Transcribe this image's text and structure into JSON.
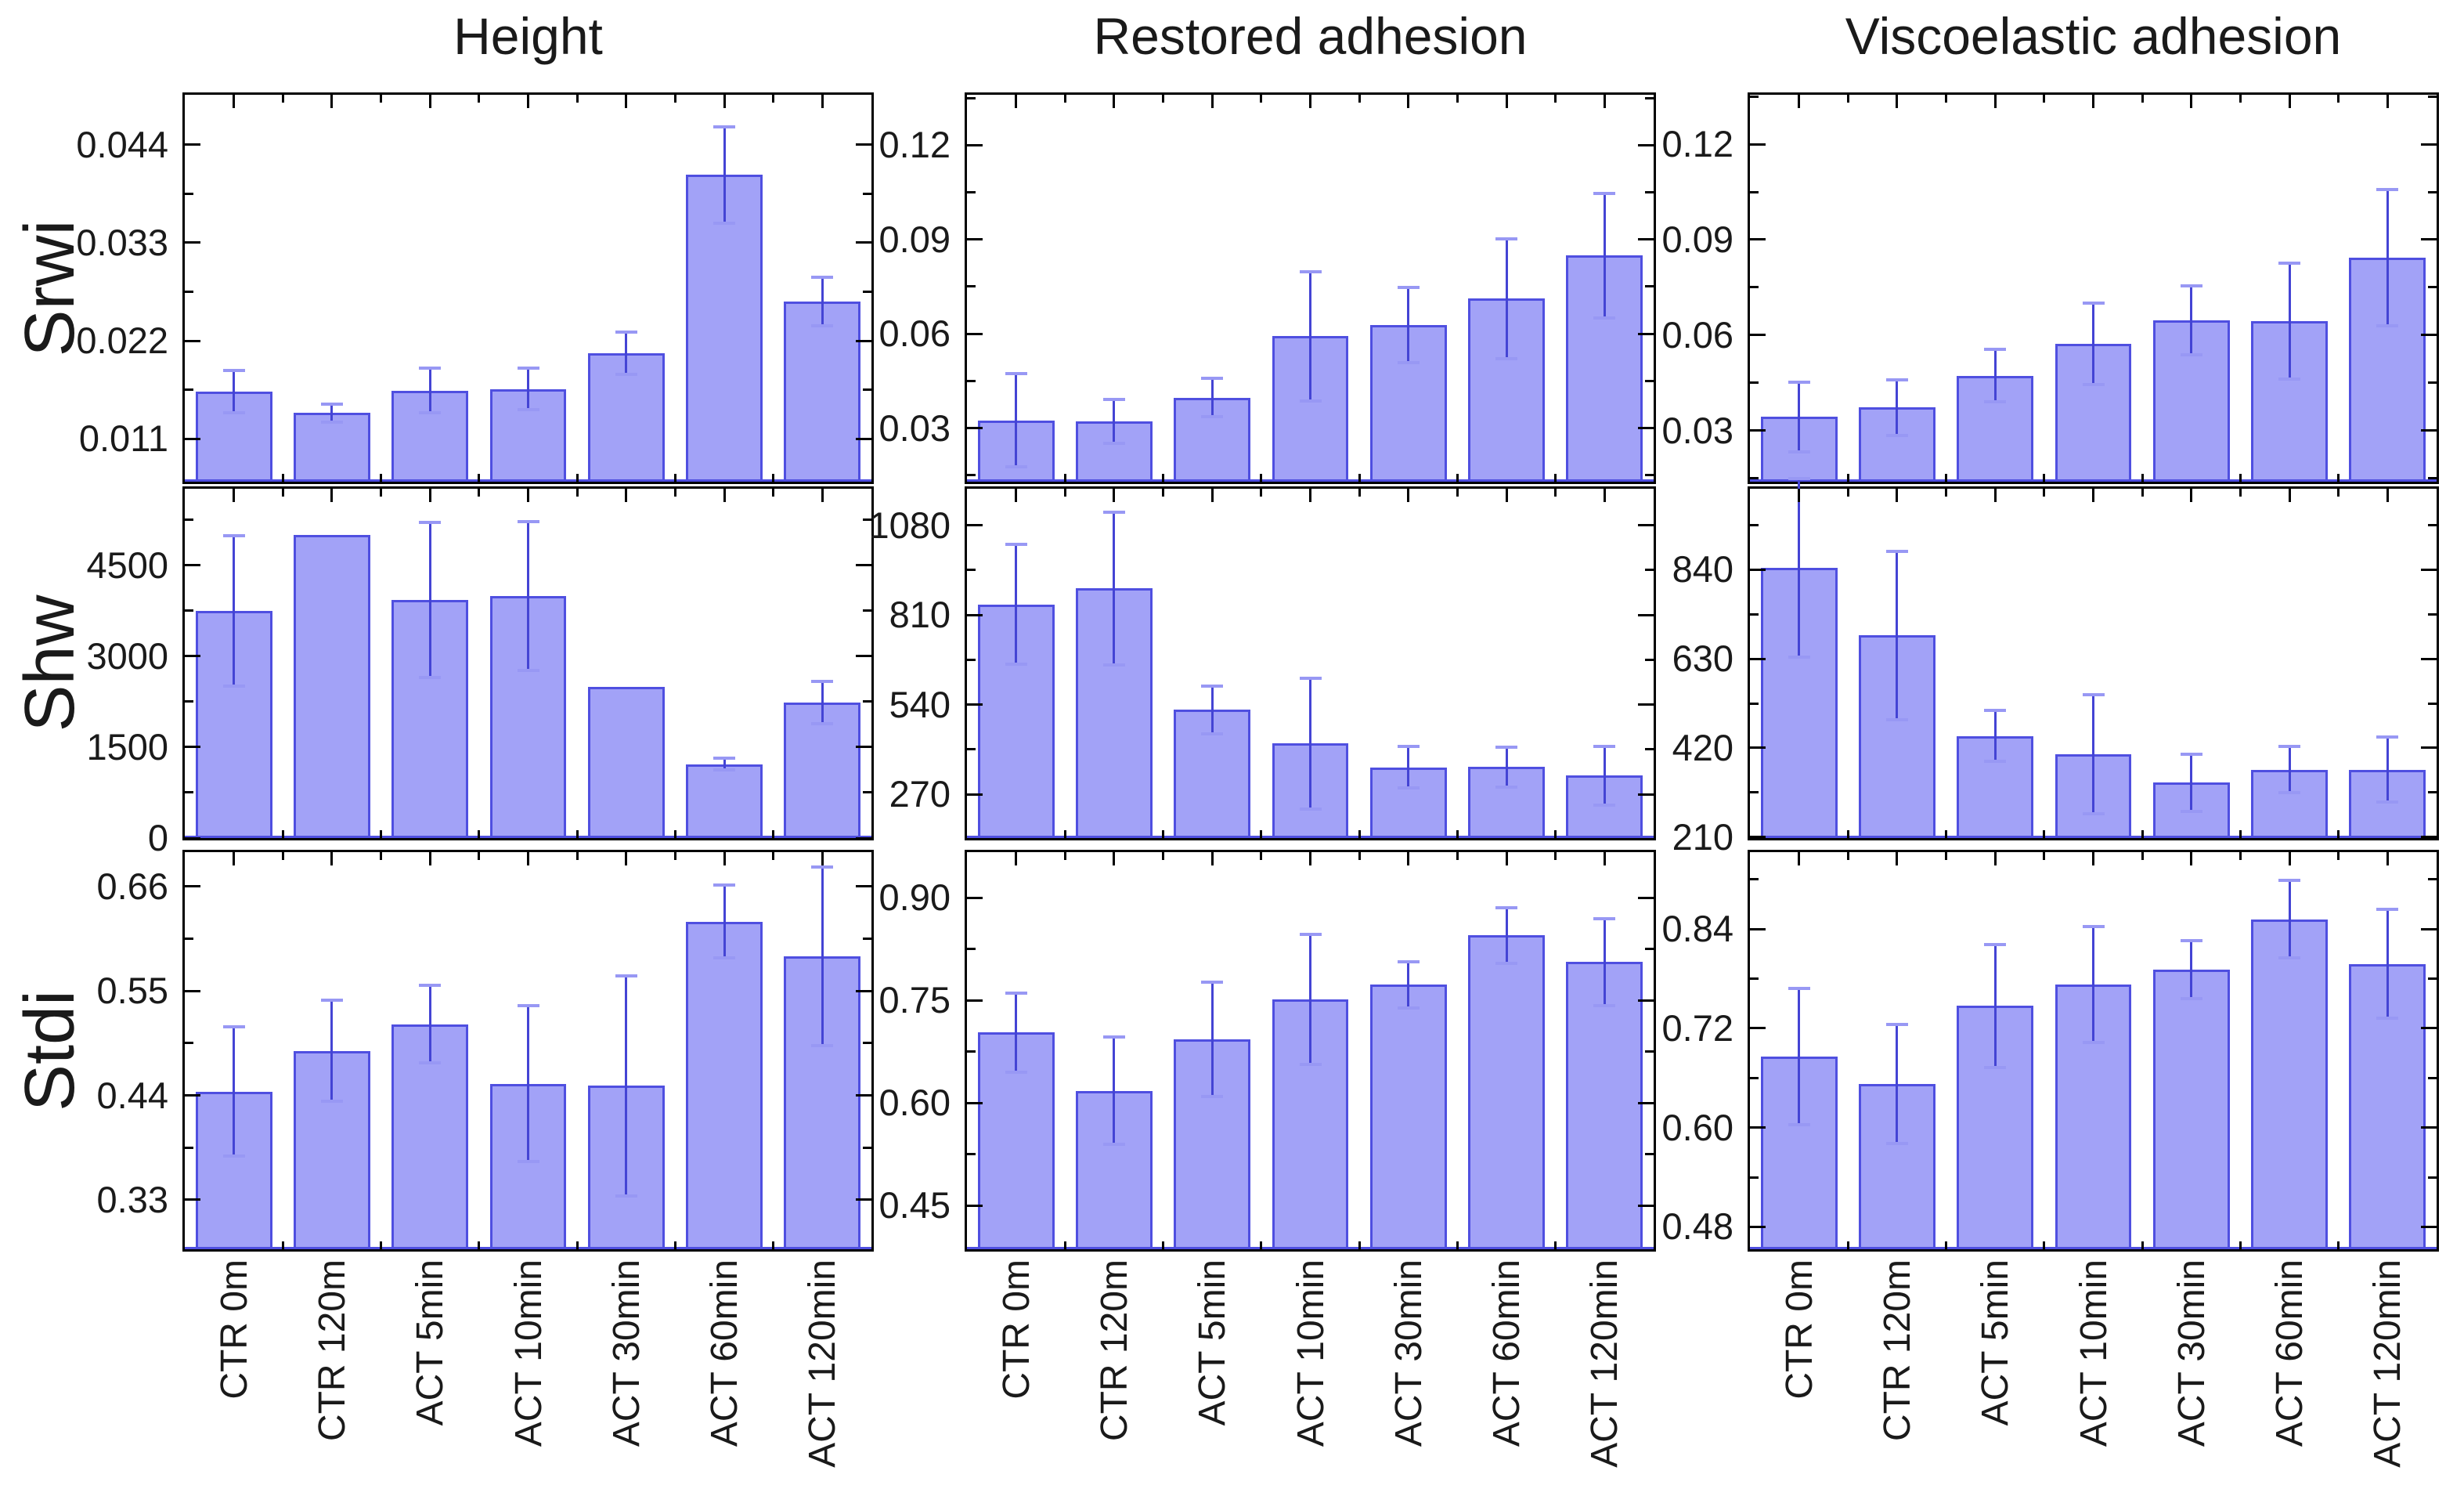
{
  "figure": {
    "column_titles": [
      "Height",
      "Restored adhesion",
      "Viscoelastic adhesion"
    ],
    "row_labels": [
      "Srwi",
      "Shw",
      "Stdi"
    ]
  },
  "categories": [
    "CTR 0m",
    "CTR 120m",
    "ACT 5min",
    "ACT 10min",
    "ACT 30min",
    "ACT 60min",
    "ACT 120min"
  ],
  "colors": {
    "bar_fill": "#a2a2f7",
    "bar_edge": "#4f4fe0",
    "error_line": "#4444d4",
    "error_cap": "#9898f4",
    "axis": "#000000",
    "text": "#1a1a1a",
    "background": "#ffffff"
  },
  "chart_data": [
    {
      "type": "bar",
      "row": "Srwi",
      "column": "Height",
      "categories": [
        "CTR 0m",
        "CTR 120m",
        "ACT 5min",
        "ACT 10min",
        "ACT 30min",
        "ACT 60min",
        "ACT 120min"
      ],
      "values": [
        0.0163,
        0.0139,
        0.0164,
        0.0166,
        0.0206,
        0.0406,
        0.0264
      ],
      "errors": [
        0.0024,
        0.001,
        0.0025,
        0.0023,
        0.0024,
        0.0054,
        0.0027
      ],
      "ytick_values": [
        0.011,
        0.022,
        0.033,
        0.044
      ],
      "ytick_labels": [
        "0.011",
        "0.022",
        "0.033",
        "0.044"
      ],
      "ylim": [
        0.0062,
        0.0496
      ],
      "grid": false,
      "legend": "none"
    },
    {
      "type": "bar",
      "row": "Srwi",
      "column": "Restored adhesion",
      "categories": [
        "CTR 0m",
        "CTR 120m",
        "ACT 5min",
        "ACT 10min",
        "ACT 30min",
        "ACT 60min",
        "ACT 120min"
      ],
      "values": [
        0.0325,
        0.0322,
        0.0397,
        0.0592,
        0.0628,
        0.0712,
        0.0849
      ],
      "errors": [
        0.0148,
        0.007,
        0.0061,
        0.0206,
        0.0119,
        0.0191,
        0.0198
      ],
      "ytick_values": [
        0.03,
        0.06,
        0.09,
        0.12
      ],
      "ytick_labels": [
        "0.03",
        "0.06",
        "0.09",
        "0.12"
      ],
      "ylim": [
        0.013,
        0.136
      ],
      "grid": false,
      "legend": "none"
    },
    {
      "type": "bar",
      "row": "Srwi",
      "column": "Viscoelastic adhesion",
      "categories": [
        "CTR 0m",
        "CTR 120m",
        "ACT 5min",
        "ACT 10min",
        "ACT 30min",
        "ACT 60min",
        "ACT 120min"
      ],
      "values": [
        0.0343,
        0.0373,
        0.0473,
        0.0573,
        0.0647,
        0.0645,
        0.0843
      ],
      "errors": [
        0.011,
        0.0087,
        0.0082,
        0.0127,
        0.0108,
        0.0182,
        0.0214
      ],
      "ytick_values": [
        0.03,
        0.06,
        0.09,
        0.12
      ],
      "ytick_labels": [
        "0.03",
        "0.06",
        "0.09",
        "0.12"
      ],
      "ylim": [
        0.014,
        0.1355
      ],
      "grid": false,
      "legend": "none"
    },
    {
      "type": "bar",
      "row": "Shw",
      "column": "Height",
      "categories": [
        "CTR 0m",
        "CTR 120m",
        "ACT 5min",
        "ACT 10min",
        "ACT 30min",
        "ACT 60min",
        "ACT 120min"
      ],
      "values": [
        3748,
        4993,
        3930,
        3995,
        2495,
        1217,
        2232
      ],
      "errors": [
        1240,
        0,
        1280,
        1225,
        0,
        95,
        350
      ],
      "ytick_values": [
        0,
        1500,
        3000,
        4500
      ],
      "ytick_labels": [
        "0",
        "1500",
        "3000",
        "4500"
      ],
      "ylim": [
        0,
        5760
      ],
      "grid": false,
      "legend": "none"
    },
    {
      "type": "bar",
      "row": "Shw",
      "column": "Restored adhesion",
      "categories": [
        "CTR 0m",
        "CTR 120m",
        "ACT 5min",
        "ACT 10min",
        "ACT 30min",
        "ACT 60min",
        "ACT 120min"
      ],
      "values": [
        842,
        890,
        524,
        423,
        351,
        352,
        326
      ],
      "errors": [
        180,
        230,
        72,
        197,
        63,
        60,
        88
      ],
      "ytick_values": [
        270,
        540,
        810,
        1080
      ],
      "ytick_labels": [
        "270",
        "540",
        "810",
        "1080"
      ],
      "ylim": [
        138,
        1190
      ],
      "grid": false,
      "legend": "none"
    },
    {
      "type": "bar",
      "row": "Shw",
      "column": "Viscoelastic adhesion",
      "categories": [
        "CTR 0m",
        "CTR 120m",
        "ACT 5min",
        "ACT 10min",
        "ACT 30min",
        "ACT 60min",
        "ACT 120min"
      ],
      "values": [
        844,
        685,
        448,
        406,
        338,
        369,
        369
      ],
      "errors": [
        210,
        198,
        60,
        140,
        68,
        55,
        77
      ],
      "ytick_values": [
        210,
        420,
        630,
        840
      ],
      "ytick_labels": [
        "210",
        "420",
        "630",
        "840"
      ],
      "ylim": [
        208,
        1030
      ],
      "grid": false,
      "legend": "none"
    },
    {
      "type": "bar",
      "row": "Stdi",
      "column": "Height",
      "categories": [
        "CTR 0m",
        "CTR 120m",
        "ACT 5min",
        "ACT 10min",
        "ACT 30min",
        "ACT 60min",
        "ACT 120min"
      ],
      "values": [
        0.444,
        0.487,
        0.515,
        0.452,
        0.45,
        0.623,
        0.586
      ],
      "errors": [
        0.068,
        0.053,
        0.041,
        0.082,
        0.116,
        0.038,
        0.094
      ],
      "ytick_values": [
        0.33,
        0.44,
        0.55,
        0.66
      ],
      "ytick_labels": [
        "0.33",
        "0.44",
        "0.55",
        "0.66"
      ],
      "ylim": [
        0.278,
        0.696
      ],
      "grid": false,
      "legend": "none"
    },
    {
      "type": "bar",
      "row": "Stdi",
      "column": "Restored adhesion",
      "categories": [
        "CTR 0m",
        "CTR 120m",
        "ACT 5min",
        "ACT 10min",
        "ACT 30min",
        "ACT 60min",
        "ACT 120min"
      ],
      "values": [
        0.703,
        0.618,
        0.693,
        0.752,
        0.773,
        0.845,
        0.806
      ],
      "errors": [
        0.058,
        0.078,
        0.084,
        0.095,
        0.034,
        0.041,
        0.064
      ],
      "ytick_values": [
        0.45,
        0.6,
        0.75,
        0.9
      ],
      "ytick_labels": [
        "0.45",
        "0.60",
        "0.75",
        "0.90"
      ],
      "ylim": [
        0.386,
        0.967
      ],
      "grid": false,
      "legend": "none"
    },
    {
      "type": "bar",
      "row": "Stdi",
      "column": "Viscoelastic adhesion",
      "categories": [
        "CTR 0m",
        "CTR 120m",
        "ACT 5min",
        "ACT 10min",
        "ACT 30min",
        "ACT 60min",
        "ACT 120min"
      ],
      "values": [
        0.686,
        0.653,
        0.747,
        0.773,
        0.791,
        0.852,
        0.798
      ],
      "errors": [
        0.082,
        0.072,
        0.074,
        0.07,
        0.035,
        0.047,
        0.066
      ],
      "ytick_values": [
        0.48,
        0.6,
        0.72,
        0.84
      ],
      "ytick_labels": [
        "0.48",
        "0.60",
        "0.72",
        "0.84"
      ],
      "ylim": [
        0.453,
        0.933
      ],
      "grid": false,
      "legend": "none"
    }
  ]
}
